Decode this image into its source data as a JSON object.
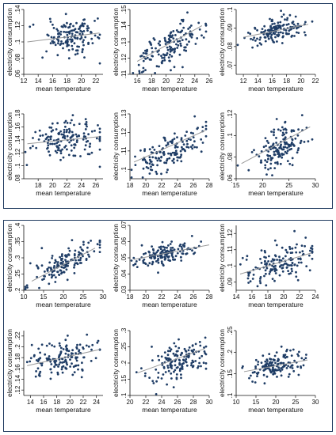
{
  "chart_data": [
    {
      "type": "scatter",
      "xlabel": "mean temperature",
      "ylabel": "electricity consumption",
      "xlim": [
        12,
        23
      ],
      "ylim": [
        0.06,
        0.14
      ],
      "xticks": [
        "12",
        "14",
        "16",
        "18",
        "20",
        "22"
      ],
      "yticks": [
        ".06",
        ".08",
        ".1",
        ".12",
        ".14"
      ],
      "fit": {
        "x": [
          12.5,
          22.5
        ],
        "y": [
          0.1,
          0.111
        ]
      },
      "point_cloud": {
        "x_center": 18.5,
        "x_spread": 2.2,
        "y_center": 0.108,
        "y_spread": 0.01,
        "count": 150,
        "slope": 0.001
      }
    },
    {
      "type": "scatter",
      "xlabel": "mean temperature",
      "ylabel": "electricity consumption",
      "xlim": [
        15,
        26
      ],
      "ylim": [
        0.11,
        0.15
      ],
      "xticks": [
        "16",
        "18",
        "20",
        "22",
        "24",
        "26"
      ],
      "yticks": [
        ".11",
        ".12",
        ".13",
        ".14",
        ".15"
      ],
      "fit": {
        "x": [
          16,
          25
        ],
        "y": [
          0.118,
          0.14
        ]
      },
      "point_cloud": {
        "x_center": 20.5,
        "x_spread": 2.3,
        "y_center": 0.128,
        "y_spread": 0.006,
        "count": 150,
        "slope": 0.0024
      }
    },
    {
      "type": "scatter",
      "xlabel": "mean temperature",
      "ylabel": "electricity consumption",
      "xlim": [
        11,
        22
      ],
      "ylim": [
        0.065,
        0.1
      ],
      "xticks": [
        "12",
        "14",
        "16",
        "18",
        "20",
        "22"
      ],
      "yticks": [
        ".07",
        ".08",
        ".09",
        ".1"
      ],
      "fit": {
        "x": [
          12,
          21
        ],
        "y": [
          0.085,
          0.092
        ]
      },
      "point_cloud": {
        "x_center": 17,
        "x_spread": 2.0,
        "y_center": 0.089,
        "y_spread": 0.0035,
        "count": 150,
        "slope": 0.0008
      }
    },
    {
      "type": "scatter",
      "xlabel": "mean temperature",
      "ylabel": "electricity consumption",
      "xlim": [
        16,
        27
      ],
      "ylim": [
        0.08,
        0.18
      ],
      "xticks": [
        "18",
        "20",
        "22",
        "24",
        "26"
      ],
      "yticks": [
        ".08",
        ".1",
        ".12",
        ".14",
        ".16",
        ".18"
      ],
      "fit": {
        "x": [
          16.5,
          26.5
        ],
        "y": [
          0.134,
          0.145
        ]
      },
      "point_cloud": {
        "x_center": 22,
        "x_spread": 2.3,
        "y_center": 0.138,
        "y_spread": 0.015,
        "count": 150,
        "slope": 0.0011
      }
    },
    {
      "type": "scatter",
      "xlabel": "mean temperature",
      "ylabel": "electricity consumption",
      "xlim": [
        18,
        28
      ],
      "ylim": [
        0.095,
        0.13
      ],
      "xticks": [
        "18",
        "20",
        "22",
        "24",
        "26",
        "28"
      ],
      "yticks": [
        ".1",
        ".11",
        ".12",
        ".13"
      ],
      "fit": {
        "x": [
          18.5,
          27.5
        ],
        "y": [
          0.104,
          0.121
        ]
      },
      "point_cloud": {
        "x_center": 23,
        "x_spread": 2.2,
        "y_center": 0.11,
        "y_spread": 0.005,
        "count": 150,
        "slope": 0.0019
      }
    },
    {
      "type": "scatter",
      "xlabel": "mean temperature",
      "ylabel": "electricity consumption",
      "xlim": [
        15,
        30
      ],
      "ylim": [
        0.06,
        0.12
      ],
      "xticks": [
        "15",
        "20",
        "25",
        "30"
      ],
      "yticks": [
        ".06",
        ".08",
        ".1",
        ".12"
      ],
      "fit": {
        "x": [
          16,
          29
        ],
        "y": [
          0.074,
          0.108
        ]
      },
      "point_cloud": {
        "x_center": 23,
        "x_spread": 2.5,
        "y_center": 0.088,
        "y_spread": 0.009,
        "count": 150,
        "slope": 0.0026
      }
    },
    {
      "type": "scatter",
      "xlabel": "mean temperature",
      "ylabel": "electricity consumption",
      "xlim": [
        10,
        30
      ],
      "ylim": [
        0.2,
        0.4
      ],
      "xticks": [
        "10",
        "15",
        "20",
        "25",
        "30"
      ],
      "yticks": [
        ".2",
        ".25",
        ".3",
        ".35",
        ".4"
      ],
      "fit": {
        "x": [
          12,
          28
        ],
        "y": [
          0.228,
          0.33
        ]
      },
      "point_cloud": {
        "x_center": 20,
        "x_spread": 4.5,
        "y_center": 0.28,
        "y_spread": 0.02,
        "count": 150,
        "slope": 0.0064
      }
    },
    {
      "type": "scatter",
      "xlabel": "mean temperature",
      "ylabel": "electricity consumption",
      "xlim": [
        18,
        28
      ],
      "ylim": [
        0.03,
        0.07
      ],
      "xticks": [
        "18",
        "20",
        "22",
        "24",
        "26",
        "28"
      ],
      "yticks": [
        ".03",
        ".04",
        ".05",
        ".06",
        ".07"
      ],
      "fit": {
        "x": [
          18.5,
          28
        ],
        "y": [
          0.049,
          0.058
        ]
      },
      "point_cloud": {
        "x_center": 22.3,
        "x_spread": 1.8,
        "y_center": 0.052,
        "y_spread": 0.0035,
        "count": 150,
        "slope": 0.0009
      }
    },
    {
      "type": "scatter",
      "xlabel": "mean temperature",
      "ylabel": "electricity consumption",
      "xlim": [
        14,
        24
      ],
      "ylim": [
        0.085,
        0.125
      ],
      "xticks": [
        "14",
        "16",
        "18",
        "20",
        "22",
        "24"
      ],
      "yticks": [
        ".09",
        ".1",
        ".11",
        ".12"
      ],
      "fit": {
        "x": [
          14.5,
          23.5
        ],
        "y": [
          0.095,
          0.108
        ]
      },
      "point_cloud": {
        "x_center": 19.5,
        "x_spread": 2.2,
        "y_center": 0.102,
        "y_spread": 0.005,
        "count": 150,
        "slope": 0.0014
      }
    },
    {
      "type": "scatter",
      "xlabel": "mean temperature",
      "ylabel": "electricity consumption",
      "xlim": [
        13,
        25
      ],
      "ylim": [
        0.11,
        0.23
      ],
      "xticks": [
        "14",
        "16",
        "18",
        "20",
        "22",
        "24"
      ],
      "yticks": [
        ".12",
        ".14",
        ".16",
        ".18",
        ".2",
        ".22"
      ],
      "fit": {
        "x": [
          13.5,
          24.5
        ],
        "y": [
          0.165,
          0.195
        ]
      },
      "point_cloud": {
        "x_center": 19,
        "x_spread": 2.6,
        "y_center": 0.178,
        "y_spread": 0.017,
        "count": 150,
        "slope": 0.0027
      }
    },
    {
      "type": "scatter",
      "xlabel": "mean temperature",
      "ylabel": "electricity consumption",
      "xlim": [
        20,
        30
      ],
      "ylim": [
        0.1,
        0.3
      ],
      "xticks": [
        "20",
        "22",
        "24",
        "26",
        "28",
        "30"
      ],
      "yticks": [
        ".1",
        ".15",
        ".2",
        ".25",
        ".3"
      ],
      "fit": {
        "x": [
          21,
          29.5
        ],
        "y": [
          0.17,
          0.245
        ]
      },
      "point_cloud": {
        "x_center": 26,
        "x_spread": 2.0,
        "y_center": 0.205,
        "y_spread": 0.025,
        "count": 150,
        "slope": 0.0088
      }
    },
    {
      "type": "scatter",
      "xlabel": "mean temperature",
      "ylabel": "electricity consumption",
      "xlim": [
        10,
        30
      ],
      "ylim": [
        0.1,
        0.25
      ],
      "xticks": [
        "10",
        "15",
        "20",
        "25",
        "30"
      ],
      "yticks": [
        ".1",
        ".15",
        ".2",
        ".25"
      ],
      "fit": {
        "x": [
          12,
          28
        ],
        "y": [
          0.155,
          0.182
        ]
      },
      "point_cloud": {
        "x_center": 20,
        "x_spread": 3.5,
        "y_center": 0.168,
        "y_spread": 0.015,
        "count": 150,
        "slope": 0.0017
      }
    }
  ],
  "colors": {
    "points": "#1f3d66",
    "fit_line": "#9a9a9a",
    "frame": "#1f3a5f",
    "axis": "#111111"
  }
}
